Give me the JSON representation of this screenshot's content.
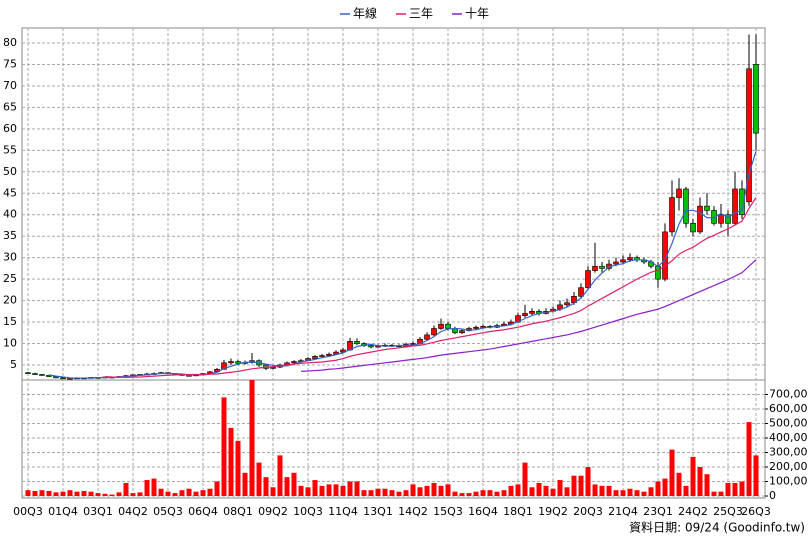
{
  "chart_data": {
    "type": "candlestick",
    "legend_position": "top",
    "grid": true,
    "up_color": "#ff0000",
    "down_color": "#00c000",
    "volume_color": "#ff0000",
    "source": "資料日期: 09/24 (Goodinfo.tw)",
    "categories": [
      "00Q3",
      null,
      null,
      null,
      null,
      "01Q4",
      null,
      null,
      null,
      null,
      "03Q1",
      null,
      null,
      null,
      null,
      "04Q2",
      null,
      null,
      null,
      null,
      "05Q3",
      null,
      null,
      null,
      null,
      "06Q4",
      null,
      null,
      null,
      null,
      "08Q1",
      null,
      null,
      null,
      null,
      "09Q2",
      null,
      null,
      null,
      null,
      "10Q3",
      null,
      null,
      null,
      null,
      "11Q4",
      null,
      null,
      null,
      null,
      "13Q1",
      null,
      null,
      null,
      null,
      "14Q2",
      null,
      null,
      null,
      null,
      "15Q3",
      null,
      null,
      null,
      null,
      "16Q4",
      null,
      null,
      null,
      null,
      "18Q1",
      null,
      null,
      null,
      null,
      "19Q2",
      null,
      null,
      null,
      null,
      "20Q3",
      null,
      null,
      null,
      null,
      "21Q4",
      null,
      null,
      null,
      null,
      "23Q1",
      null,
      null,
      null,
      null,
      "24Q2",
      null,
      null,
      null,
      null,
      "25Q3",
      null,
      null,
      null,
      "26Q3"
    ],
    "ohlc": [
      [
        3.2,
        3.4,
        2.9,
        3.0
      ],
      [
        3.0,
        3.2,
        2.7,
        2.8
      ],
      [
        2.8,
        2.9,
        2.5,
        2.6
      ],
      [
        2.6,
        2.7,
        2.2,
        2.3
      ],
      [
        2.3,
        2.4,
        1.9,
        2.0
      ],
      [
        2.0,
        2.1,
        1.8,
        1.9
      ],
      [
        1.9,
        2.0,
        1.8,
        1.9
      ],
      [
        1.9,
        2.1,
        1.8,
        2.0
      ],
      [
        2.0,
        2.1,
        1.9,
        2.0
      ],
      [
        2.0,
        2.2,
        1.9,
        2.1
      ],
      [
        2.1,
        2.2,
        2.0,
        2.1
      ],
      [
        2.1,
        2.3,
        2.0,
        2.2
      ],
      [
        2.2,
        2.3,
        2.1,
        2.2
      ],
      [
        2.2,
        2.4,
        2.1,
        2.3
      ],
      [
        2.3,
        2.7,
        2.2,
        2.5
      ],
      [
        2.5,
        2.8,
        2.4,
        2.7
      ],
      [
        2.7,
        2.9,
        2.6,
        2.8
      ],
      [
        2.8,
        3.2,
        2.7,
        2.9
      ],
      [
        2.9,
        3.3,
        2.8,
        3.0
      ],
      [
        3.0,
        3.4,
        2.9,
        3.2
      ],
      [
        3.2,
        3.3,
        2.9,
        3.0
      ],
      [
        3.0,
        3.1,
        2.7,
        2.8
      ],
      [
        2.8,
        2.9,
        2.5,
        2.6
      ],
      [
        2.6,
        2.7,
        2.4,
        2.5
      ],
      [
        2.5,
        2.8,
        2.4,
        2.7
      ],
      [
        2.7,
        3.1,
        2.6,
        3.0
      ],
      [
        3.0,
        3.6,
        2.9,
        3.4
      ],
      [
        3.4,
        4.3,
        3.3,
        4.0
      ],
      [
        4.0,
        6.2,
        3.9,
        5.5
      ],
      [
        5.5,
        6.5,
        5.0,
        5.8
      ],
      [
        5.8,
        6.2,
        5.0,
        5.4
      ],
      [
        5.4,
        6.0,
        5.1,
        5.6
      ],
      [
        5.6,
        7.8,
        5.3,
        6.0
      ],
      [
        6.0,
        6.3,
        4.6,
        5.0
      ],
      [
        5.0,
        5.2,
        3.8,
        4.2
      ],
      [
        4.2,
        4.8,
        4.0,
        4.5
      ],
      [
        4.5,
        5.3,
        4.3,
        5.0
      ],
      [
        5.0,
        5.8,
        4.8,
        5.5
      ],
      [
        5.5,
        6.1,
        5.3,
        5.8
      ],
      [
        5.8,
        6.4,
        5.6,
        6.0
      ],
      [
        6.0,
        6.8,
        5.8,
        6.5
      ],
      [
        6.5,
        7.3,
        6.3,
        7.0
      ],
      [
        7.0,
        7.6,
        6.8,
        7.2
      ],
      [
        7.2,
        7.9,
        7.0,
        7.5
      ],
      [
        7.5,
        8.4,
        7.3,
        8.0
      ],
      [
        8.0,
        9.0,
        7.8,
        8.5
      ],
      [
        8.5,
        11.3,
        8.3,
        10.5
      ],
      [
        10.5,
        11.2,
        9.6,
        10.0
      ],
      [
        10.0,
        10.3,
        9.2,
        9.5
      ],
      [
        9.5,
        9.8,
        8.9,
        9.2
      ],
      [
        9.2,
        9.8,
        9.0,
        9.4
      ],
      [
        9.4,
        10.0,
        9.2,
        9.6
      ],
      [
        9.6,
        9.9,
        9.2,
        9.5
      ],
      [
        9.5,
        9.8,
        9.0,
        9.3
      ],
      [
        9.3,
        10.2,
        9.1,
        9.8
      ],
      [
        9.8,
        10.5,
        9.5,
        10.0
      ],
      [
        10.0,
        11.5,
        9.8,
        11.0
      ],
      [
        11.0,
        12.6,
        10.8,
        12.0
      ],
      [
        12.0,
        14.2,
        11.8,
        13.5
      ],
      [
        13.5,
        15.8,
        13.2,
        14.5
      ],
      [
        14.5,
        15.0,
        13.0,
        13.5
      ],
      [
        13.5,
        13.9,
        12.2,
        12.5
      ],
      [
        12.5,
        13.4,
        12.2,
        13.0
      ],
      [
        13.0,
        13.9,
        12.8,
        13.5
      ],
      [
        13.5,
        14.2,
        13.2,
        13.8
      ],
      [
        13.8,
        14.4,
        13.5,
        14.0
      ],
      [
        14.0,
        14.3,
        13.5,
        13.8
      ],
      [
        13.8,
        14.6,
        13.6,
        14.2
      ],
      [
        14.2,
        15.0,
        14.0,
        14.5
      ],
      [
        14.5,
        15.6,
        14.2,
        15.0
      ],
      [
        15.0,
        17.2,
        14.8,
        16.5
      ],
      [
        16.5,
        19.0,
        16.0,
        17.0
      ],
      [
        17.0,
        18.2,
        16.6,
        17.5
      ],
      [
        17.5,
        18.0,
        16.5,
        17.0
      ],
      [
        17.0,
        18.2,
        16.8,
        17.5
      ],
      [
        17.5,
        18.6,
        17.2,
        18.0
      ],
      [
        18.0,
        20.0,
        17.6,
        19.0
      ],
      [
        19.0,
        20.5,
        18.5,
        19.5
      ],
      [
        19.5,
        22.0,
        19.0,
        21.0
      ],
      [
        21.0,
        24.0,
        20.5,
        23.0
      ],
      [
        23.0,
        28.0,
        22.5,
        27.0
      ],
      [
        27.0,
        33.5,
        26.5,
        28.0
      ],
      [
        28.0,
        29.0,
        26.5,
        27.5
      ],
      [
        27.5,
        29.5,
        27.0,
        28.5
      ],
      [
        28.5,
        30.0,
        28.0,
        29.0
      ],
      [
        29.0,
        30.5,
        28.5,
        29.5
      ],
      [
        29.5,
        31.0,
        29.0,
        30.0
      ],
      [
        30.0,
        30.5,
        29.0,
        29.5
      ],
      [
        29.5,
        30.0,
        28.5,
        29.0
      ],
      [
        29.0,
        29.5,
        27.5,
        28.0
      ],
      [
        28.0,
        29.0,
        23.0,
        25.0
      ],
      [
        25.0,
        38.0,
        24.5,
        36.0
      ],
      [
        36.0,
        48.0,
        35.0,
        44.0
      ],
      [
        44.0,
        48.5,
        41.0,
        46.0
      ],
      [
        46.0,
        46.5,
        37.0,
        38.0
      ],
      [
        38.0,
        39.0,
        35.0,
        36.0
      ],
      [
        36.0,
        44.0,
        35.5,
        42.0
      ],
      [
        42.0,
        45.0,
        40.0,
        41.0
      ],
      [
        41.0,
        42.0,
        37.5,
        38.0
      ],
      [
        38.0,
        42.5,
        37.0,
        40.0
      ],
      [
        40.0,
        41.0,
        35.0,
        38.0
      ],
      [
        38.0,
        50.0,
        37.5,
        46.0
      ],
      [
        46.0,
        48.0,
        39.0,
        40.0
      ],
      [
        43.0,
        82.0,
        42.0,
        74.0
      ],
      [
        75.0,
        82.0,
        55.0,
        59.0
      ]
    ],
    "series": [
      {
        "name": "年線",
        "color": "#3366cc",
        "values": [
          null,
          null,
          null,
          2.7,
          2.4,
          2.2,
          2.0,
          1.95,
          1.95,
          2.0,
          2.05,
          2.1,
          2.15,
          2.2,
          2.3,
          2.4,
          2.6,
          2.7,
          2.85,
          3.0,
          3.0,
          3.0,
          2.9,
          2.7,
          2.65,
          2.7,
          2.9,
          3.3,
          4.2,
          4.7,
          5.2,
          5.6,
          5.7,
          5.5,
          5.2,
          4.9,
          4.7,
          4.8,
          5.2,
          5.7,
          6.0,
          6.3,
          6.7,
          7.0,
          7.4,
          7.8,
          8.6,
          9.3,
          9.6,
          9.8,
          9.5,
          9.4,
          9.4,
          9.5,
          9.6,
          9.6,
          10.0,
          10.7,
          11.6,
          12.8,
          13.4,
          13.5,
          13.4,
          13.1,
          13.2,
          13.6,
          13.8,
          14.0,
          14.1,
          14.4,
          15.1,
          15.8,
          16.5,
          17.0,
          17.3,
          17.5,
          17.9,
          18.5,
          19.4,
          20.6,
          22.6,
          24.8,
          26.4,
          27.8,
          28.3,
          28.6,
          29.3,
          29.5,
          29.5,
          29.1,
          27.9,
          29.5,
          33.3,
          37.8,
          41.0,
          41.0,
          40.5,
          39.3,
          39.3,
          40.3,
          39.3,
          40.5,
          41.0,
          49.5,
          54.8
        ]
      },
      {
        "name": "三年",
        "color": "#e0206a",
        "values": [
          null,
          null,
          null,
          null,
          null,
          null,
          null,
          null,
          null,
          null,
          null,
          2.3,
          2.2,
          2.15,
          2.1,
          2.15,
          2.2,
          2.3,
          2.4,
          2.5,
          2.6,
          2.7,
          2.75,
          2.8,
          2.8,
          2.8,
          2.85,
          2.9,
          3.1,
          3.3,
          3.5,
          3.8,
          4.1,
          4.3,
          4.5,
          4.6,
          4.8,
          5.0,
          5.2,
          5.4,
          5.5,
          5.6,
          5.7,
          5.9,
          6.1,
          6.5,
          7.0,
          7.4,
          7.7,
          8.0,
          8.3,
          8.6,
          8.8,
          9.0,
          9.2,
          9.4,
          9.6,
          9.9,
          10.3,
          10.7,
          11.0,
          11.3,
          11.6,
          11.9,
          12.2,
          12.5,
          12.8,
          13.0,
          13.2,
          13.5,
          13.8,
          14.2,
          14.6,
          14.9,
          15.2,
          15.6,
          16.0,
          16.5,
          17.0,
          17.7,
          18.7,
          19.6,
          20.5,
          21.4,
          22.3,
          23.2,
          24.1,
          25.0,
          25.8,
          26.6,
          27.1,
          28.0,
          29.3,
          30.8,
          31.7,
          32.4,
          33.5,
          34.5,
          35.2,
          36.0,
          36.7,
          37.6,
          38.5,
          41.5,
          44.0
        ]
      },
      {
        "name": "十年",
        "color": "#8a1fc8",
        "values": [
          null,
          null,
          null,
          null,
          null,
          null,
          null,
          null,
          null,
          null,
          null,
          null,
          null,
          null,
          null,
          null,
          null,
          null,
          null,
          null,
          null,
          null,
          null,
          null,
          null,
          null,
          null,
          null,
          null,
          null,
          null,
          null,
          null,
          null,
          null,
          null,
          null,
          null,
          null,
          3.5,
          3.6,
          3.7,
          3.8,
          4.0,
          4.1,
          4.3,
          4.5,
          4.7,
          4.9,
          5.1,
          5.3,
          5.5,
          5.7,
          5.9,
          6.1,
          6.3,
          6.5,
          6.7,
          7.0,
          7.3,
          7.5,
          7.7,
          7.9,
          8.1,
          8.3,
          8.5,
          8.7,
          9.0,
          9.3,
          9.6,
          9.9,
          10.2,
          10.5,
          10.8,
          11.1,
          11.4,
          11.7,
          12.0,
          12.4,
          12.8,
          13.3,
          13.8,
          14.3,
          14.8,
          15.3,
          15.8,
          16.3,
          16.8,
          17.2,
          17.6,
          18.0,
          18.6,
          19.3,
          20.0,
          20.7,
          21.4,
          22.1,
          22.8,
          23.5,
          24.2,
          24.9,
          25.7,
          26.5,
          28.0,
          29.5
        ]
      }
    ],
    "ylim": [
      1.5,
      83.5
    ],
    "yticks": [
      5,
      10,
      15,
      20,
      25,
      30,
      35,
      40,
      45,
      50,
      55,
      60,
      65,
      70,
      75,
      80
    ],
    "volume": [
      40000,
      35000,
      40000,
      35000,
      25000,
      30000,
      40000,
      30000,
      35000,
      30000,
      20000,
      15000,
      10000,
      25000,
      90000,
      20000,
      25000,
      110000,
      120000,
      50000,
      30000,
      20000,
      40000,
      50000,
      30000,
      40000,
      50000,
      100000,
      680000,
      470000,
      380000,
      160000,
      800000,
      230000,
      130000,
      60000,
      280000,
      130000,
      160000,
      70000,
      60000,
      110000,
      70000,
      80000,
      80000,
      70000,
      100000,
      100000,
      40000,
      40000,
      50000,
      50000,
      40000,
      30000,
      40000,
      80000,
      60000,
      70000,
      90000,
      70000,
      80000,
      30000,
      20000,
      20000,
      30000,
      40000,
      40000,
      30000,
      40000,
      70000,
      80000,
      230000,
      60000,
      90000,
      70000,
      50000,
      110000,
      60000,
      140000,
      140000,
      200000,
      80000,
      70000,
      70000,
      40000,
      40000,
      50000,
      40000,
      30000,
      60000,
      100000,
      120000,
      320000,
      160000,
      70000,
      270000,
      200000,
      150000,
      30000,
      30000,
      90000,
      90000,
      100000,
      510000,
      280000
    ],
    "y2lim": [
      0,
      800000
    ],
    "y2ticks": [
      0,
      {
        "value": 100000,
        "label": "100,000"
      },
      {
        "value": 200000,
        "label": "200,000"
      },
      {
        "value": 300000,
        "label": "300,000"
      },
      {
        "value": 400000,
        "label": "400,000"
      },
      {
        "value": 500000,
        "label": "500,000"
      },
      {
        "value": 600000,
        "label": "600,000"
      },
      {
        "value": 700000,
        "label": "700,000"
      }
    ]
  }
}
